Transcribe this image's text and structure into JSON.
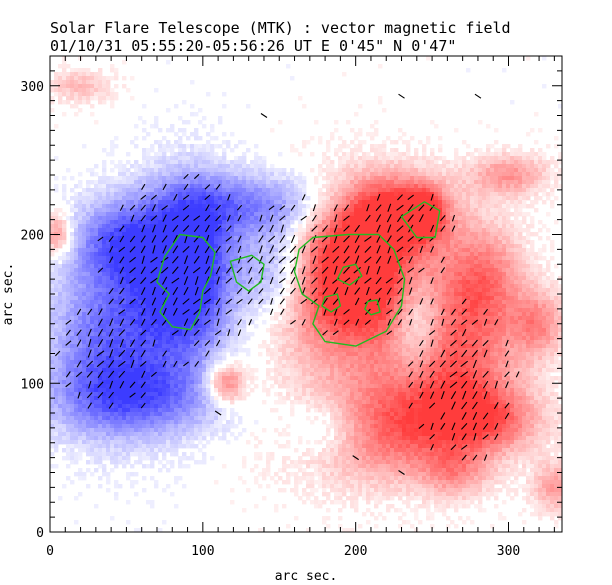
{
  "header": {
    "title": "Solar Flare Telescope (MTK) : vector magnetic field",
    "subtitle": "01/10/31  05:55:20-05:56:26 UT    E 0'45\"  N 0'47\""
  },
  "chart_data": {
    "type": "heatmap",
    "title": "Solar Flare Telescope (MTK) : vector magnetic field",
    "subtitle": "01/10/31  05:55:20-05:56:26 UT    E 0'45\"  N 0'47\"",
    "xlabel": "arc sec.",
    "ylabel": "arc sec.",
    "xlim": [
      0,
      335
    ],
    "ylim": [
      0,
      320
    ],
    "x_ticks": [
      0,
      100,
      200,
      300
    ],
    "y_ticks": [
      0,
      100,
      200,
      300
    ],
    "x_tick_labels": [
      "0",
      "100",
      "200",
      "300"
    ],
    "y_tick_labels": [
      "0",
      "100",
      "200",
      "300"
    ],
    "colors": {
      "positive_polarity": "#ff3c3c",
      "negative_polarity": "#3c3cff",
      "transverse_vectors": "#000000",
      "contours": "#22bb22"
    },
    "regions": [
      {
        "polarity": "negative",
        "x": 90,
        "y": 175,
        "sx": 22,
        "sy": 38,
        "strength": 1.0
      },
      {
        "polarity": "negative",
        "x": 45,
        "y": 195,
        "sx": 20,
        "sy": 20,
        "strength": 0.5
      },
      {
        "polarity": "negative",
        "x": 40,
        "y": 130,
        "sx": 28,
        "sy": 40,
        "strength": 0.55
      },
      {
        "polarity": "negative",
        "x": 60,
        "y": 90,
        "sx": 40,
        "sy": 18,
        "strength": 0.45
      },
      {
        "polarity": "negative",
        "x": 135,
        "y": 220,
        "sx": 40,
        "sy": 15,
        "strength": 0.45
      },
      {
        "polarity": "negative",
        "x": 150,
        "y": 175,
        "sx": 18,
        "sy": 25,
        "strength": 0.6
      },
      {
        "polarity": "negative",
        "x": 240,
        "y": 140,
        "sx": 12,
        "sy": 25,
        "strength": 0.45
      },
      {
        "polarity": "negative",
        "x": 180,
        "y": 70,
        "sx": 20,
        "sy": 15,
        "strength": 0.35
      },
      {
        "polarity": "positive",
        "x": 195,
        "y": 170,
        "sx": 38,
        "sy": 35,
        "strength": 1.0
      },
      {
        "polarity": "positive",
        "x": 225,
        "y": 215,
        "sx": 25,
        "sy": 18,
        "strength": 0.7
      },
      {
        "polarity": "positive",
        "x": 245,
        "y": 215,
        "sx": 8,
        "sy": 10,
        "strength": 0.6
      },
      {
        "polarity": "positive",
        "x": 265,
        "y": 110,
        "sx": 30,
        "sy": 35,
        "strength": 0.55
      },
      {
        "polarity": "positive",
        "x": 215,
        "y": 70,
        "sx": 40,
        "sy": 25,
        "strength": 0.55
      },
      {
        "polarity": "positive",
        "x": 285,
        "y": 170,
        "sx": 18,
        "sy": 25,
        "strength": 0.45
      },
      {
        "polarity": "positive",
        "x": 115,
        "y": 100,
        "sx": 9,
        "sy": 10,
        "strength": 0.6
      },
      {
        "polarity": "positive",
        "x": 300,
        "y": 240,
        "sx": 18,
        "sy": 10,
        "strength": 0.4
      },
      {
        "polarity": "positive",
        "x": 5,
        "y": 200,
        "sx": 6,
        "sy": 10,
        "strength": 0.45
      },
      {
        "polarity": "positive",
        "x": 320,
        "y": 140,
        "sx": 12,
        "sy": 15,
        "strength": 0.4
      },
      {
        "polarity": "positive",
        "x": 20,
        "y": 300,
        "sx": 15,
        "sy": 8,
        "strength": 0.25
      },
      {
        "polarity": "positive",
        "x": 330,
        "y": 30,
        "sx": 10,
        "sy": 12,
        "strength": 0.35
      },
      {
        "polarity": "positive",
        "x": 265,
        "y": 40,
        "sx": 15,
        "sy": 12,
        "strength": 0.3
      },
      {
        "polarity": "positive",
        "x": 285,
        "y": 75,
        "sx": 25,
        "sy": 15,
        "strength": 0.45
      }
    ],
    "vector_regions": [
      {
        "x": 85,
        "y": 175,
        "sx": 40,
        "sy": 45
      },
      {
        "x": 40,
        "y": 120,
        "sx": 25,
        "sy": 30
      },
      {
        "x": 195,
        "y": 180,
        "sx": 45,
        "sy": 35
      },
      {
        "x": 230,
        "y": 210,
        "sx": 25,
        "sy": 15
      },
      {
        "x": 270,
        "y": 100,
        "sx": 25,
        "sy": 40
      },
      {
        "x": 150,
        "y": 190,
        "sx": 20,
        "sy": 20
      }
    ],
    "contours": [
      {
        "points": [
          [
            85,
            200
          ],
          [
            100,
            198
          ],
          [
            108,
            188
          ],
          [
            105,
            172
          ],
          [
            100,
            162
          ],
          [
            98,
            148
          ],
          [
            92,
            136
          ],
          [
            80,
            138
          ],
          [
            72,
            148
          ],
          [
            78,
            160
          ],
          [
            70,
            168
          ],
          [
            75,
            185
          ]
        ]
      },
      {
        "points": [
          [
            118,
            182
          ],
          [
            132,
            186
          ],
          [
            140,
            180
          ],
          [
            138,
            168
          ],
          [
            130,
            162
          ],
          [
            122,
            168
          ]
        ]
      },
      {
        "points": [
          [
            172,
            198
          ],
          [
            195,
            200
          ],
          [
            215,
            200
          ],
          [
            225,
            190
          ],
          [
            232,
            170
          ],
          [
            230,
            152
          ],
          [
            220,
            135
          ],
          [
            200,
            125
          ],
          [
            180,
            128
          ],
          [
            172,
            140
          ],
          [
            176,
            152
          ],
          [
            165,
            160
          ],
          [
            160,
            175
          ],
          [
            163,
            190
          ]
        ]
      },
      {
        "points": [
          [
            230,
            212
          ],
          [
            245,
            222
          ],
          [
            255,
            216
          ],
          [
            252,
            198
          ],
          [
            240,
            198
          ]
        ]
      },
      {
        "points": [
          [
            192,
            178
          ],
          [
            200,
            180
          ],
          [
            204,
            172
          ],
          [
            196,
            166
          ],
          [
            188,
            170
          ]
        ]
      },
      {
        "points": [
          [
            180,
            158
          ],
          [
            188,
            160
          ],
          [
            190,
            152
          ],
          [
            184,
            148
          ],
          [
            178,
            152
          ]
        ]
      },
      {
        "points": [
          [
            208,
            155
          ],
          [
            214,
            156
          ],
          [
            216,
            148
          ],
          [
            210,
            146
          ],
          [
            206,
            150
          ]
        ]
      }
    ]
  }
}
